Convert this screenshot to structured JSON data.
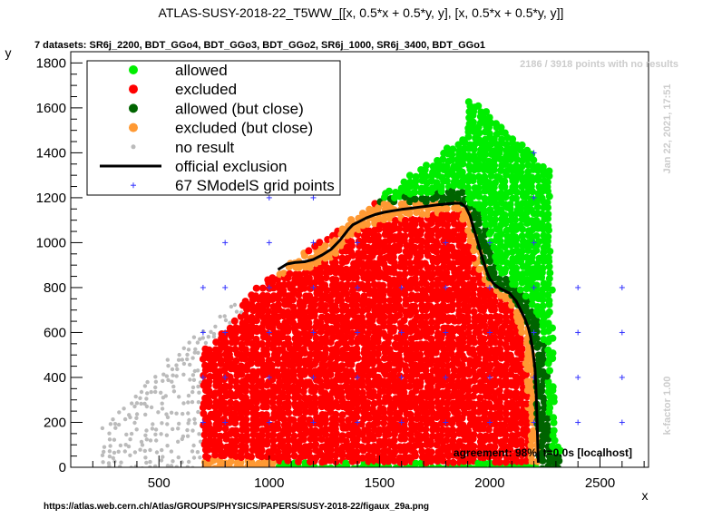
{
  "chart_data": {
    "type": "scatter",
    "title": "ATLAS-SUSY-2018-22_T5WW_[[x, 0.5*x + 0.5*y, y], [x, 0.5*x + 0.5*y, y]]",
    "subtitle": "7 datasets: SR6j_2200, BDT_GGo4, BDT_GGo3, BDT_GGo2, SR6j_1000, SR6j_3400, BDT_GGo1",
    "xlabel": "x",
    "ylabel": "y",
    "xlim": [
      100,
      2720
    ],
    "ylim": [
      0,
      1850
    ],
    "xticks": [
      500,
      1000,
      1500,
      2000,
      2500
    ],
    "yticks": [
      0,
      200,
      400,
      600,
      800,
      1000,
      1200,
      1400,
      1600,
      1800
    ],
    "grid": false,
    "legend_position": "top-left",
    "legend": [
      {
        "label": "allowed",
        "color": "#00ee00",
        "marker": "circle"
      },
      {
        "label": "excluded",
        "color": "#ff0000",
        "marker": "circle"
      },
      {
        "label": "allowed (but close)",
        "color": "#006400",
        "marker": "circle"
      },
      {
        "label": "excluded (but close)",
        "color": "#ff9933",
        "marker": "circle"
      },
      {
        "label": "no result",
        "color": "#bbbbbb",
        "marker": "small-circle"
      },
      {
        "label": "official exclusion",
        "color": "#000000",
        "marker": "line"
      },
      {
        "label": "67 SModelS grid points",
        "color": "#3333ff",
        "marker": "plus"
      }
    ],
    "annotations": {
      "no_results": "2186 / 3918 points with no results",
      "timestamp": "Jan 22, 2021, 17:51",
      "kfactor": "k-factor 1.00",
      "agreement": "agreement: 98%, t=0.0s [localhost]",
      "source_url": "https://atlas.web.cern.ch/Atlas/GROUPS/PHYSICS/PAPERS/SUSY-2018-22/figaux_29a.png"
    },
    "official_exclusion": {
      "x": [
        1040,
        1080,
        1120,
        1160,
        1200,
        1240,
        1280,
        1320,
        1360,
        1380,
        1400,
        1440,
        1480,
        1520,
        1560,
        1600,
        1640,
        1680,
        1720,
        1760,
        1800,
        1840,
        1870,
        1890,
        1910,
        1925,
        1940,
        1955,
        1970,
        1985,
        2000,
        2020,
        2040,
        2060,
        2090,
        2120,
        2140,
        2160,
        2175,
        2185,
        2195,
        2205,
        2210,
        2215,
        2220
      ],
      "y": [
        880,
        905,
        912,
        915,
        925,
        945,
        970,
        1010,
        1060,
        1080,
        1090,
        1110,
        1125,
        1135,
        1142,
        1148,
        1153,
        1158,
        1163,
        1168,
        1172,
        1176,
        1175,
        1160,
        1120,
        1070,
        1020,
        970,
        920,
        875,
        840,
        815,
        800,
        790,
        775,
        740,
        700,
        660,
        620,
        580,
        520,
        440,
        340,
        200,
        20
      ]
    },
    "grid_points": {
      "x": [
        700,
        700,
        700,
        700,
        700,
        800,
        800,
        800,
        800,
        800,
        800,
        1000,
        1000,
        1000,
        1000,
        1000,
        1000,
        1000,
        1000,
        1000,
        1200,
        1200,
        1200,
        1200,
        1200,
        1200,
        1200,
        1200,
        1400,
        1400,
        1400,
        1400,
        1400,
        1400,
        1600,
        1600,
        1600,
        1600,
        1600,
        1800,
        1800,
        1800,
        1800,
        1800,
        1800,
        2000,
        2000,
        2000,
        2000,
        2000,
        2000,
        2200,
        2200,
        2200,
        2200,
        2200,
        2200,
        2200,
        2200,
        2400,
        2400,
        2400,
        2400,
        2600,
        2600,
        2600,
        2600
      ],
      "y": [
        0,
        200,
        400,
        600,
        800,
        0,
        200,
        400,
        600,
        800,
        1000,
        0,
        200,
        400,
        600,
        800,
        1000,
        1200,
        1400,
        1600,
        0,
        200,
        400,
        600,
        800,
        1000,
        1200,
        1400,
        0,
        200,
        400,
        600,
        800,
        1000,
        0,
        200,
        400,
        600,
        800,
        0,
        200,
        400,
        600,
        800,
        1000,
        0,
        200,
        400,
        600,
        800,
        1000,
        0,
        200,
        400,
        600,
        800,
        1000,
        1200,
        1400,
        200,
        400,
        600,
        800,
        200,
        400,
        600,
        800
      ]
    }
  }
}
